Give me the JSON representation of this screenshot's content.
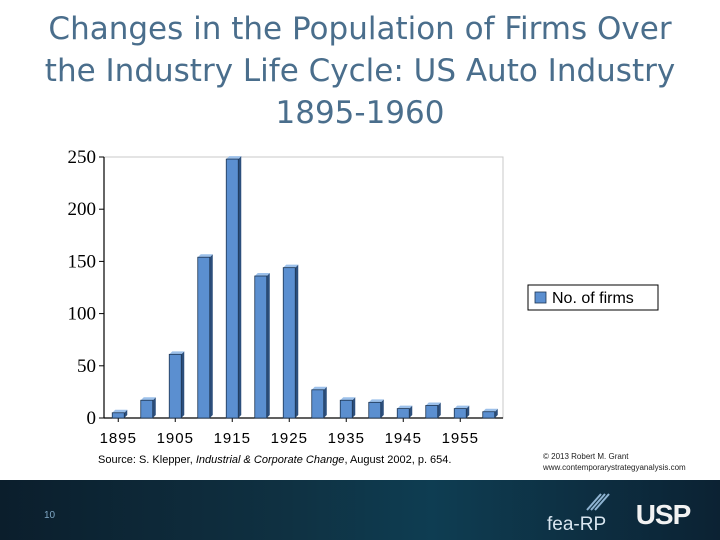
{
  "title": "Changes in the Population of Firms Over the Industry Life Cycle: US Auto Industry 1895-1960",
  "source": {
    "prefix": "Source: S. Klepper, ",
    "journal": "Industrial & Corporate Change",
    "suffix": ", August 2002, p. 654."
  },
  "copyright": {
    "line1": "© 2013 Robert M. Grant",
    "line2": "www.contemporarystrategyanalysis.com"
  },
  "page_number": "10",
  "logos": {
    "fea": "fea-RP",
    "usp": "USP"
  },
  "colors": {
    "bar": "#5b8fd0",
    "bar_dark": "#2c4f7c",
    "title": "#4a6e8c"
  },
  "chart_data": {
    "type": "bar",
    "title": "",
    "xlabel": "",
    "ylabel": "",
    "ylim": [
      0,
      250
    ],
    "yticks": [
      0,
      50,
      100,
      150,
      200,
      250
    ],
    "x_tick_labels": [
      "1895",
      "1905",
      "1915",
      "1925",
      "1935",
      "1945",
      "1955"
    ],
    "categories": [
      "1895",
      "1900",
      "1905",
      "1910",
      "1915",
      "1920",
      "1925",
      "1930",
      "1935",
      "1940",
      "1945",
      "1950",
      "1955",
      "1960"
    ],
    "series": [
      {
        "name": "No. of firms",
        "values": [
          5,
          17,
          61,
          154,
          248,
          136,
          144,
          27,
          17,
          15,
          9,
          12,
          9,
          6
        ]
      }
    ],
    "grid": false,
    "legend": "right"
  }
}
